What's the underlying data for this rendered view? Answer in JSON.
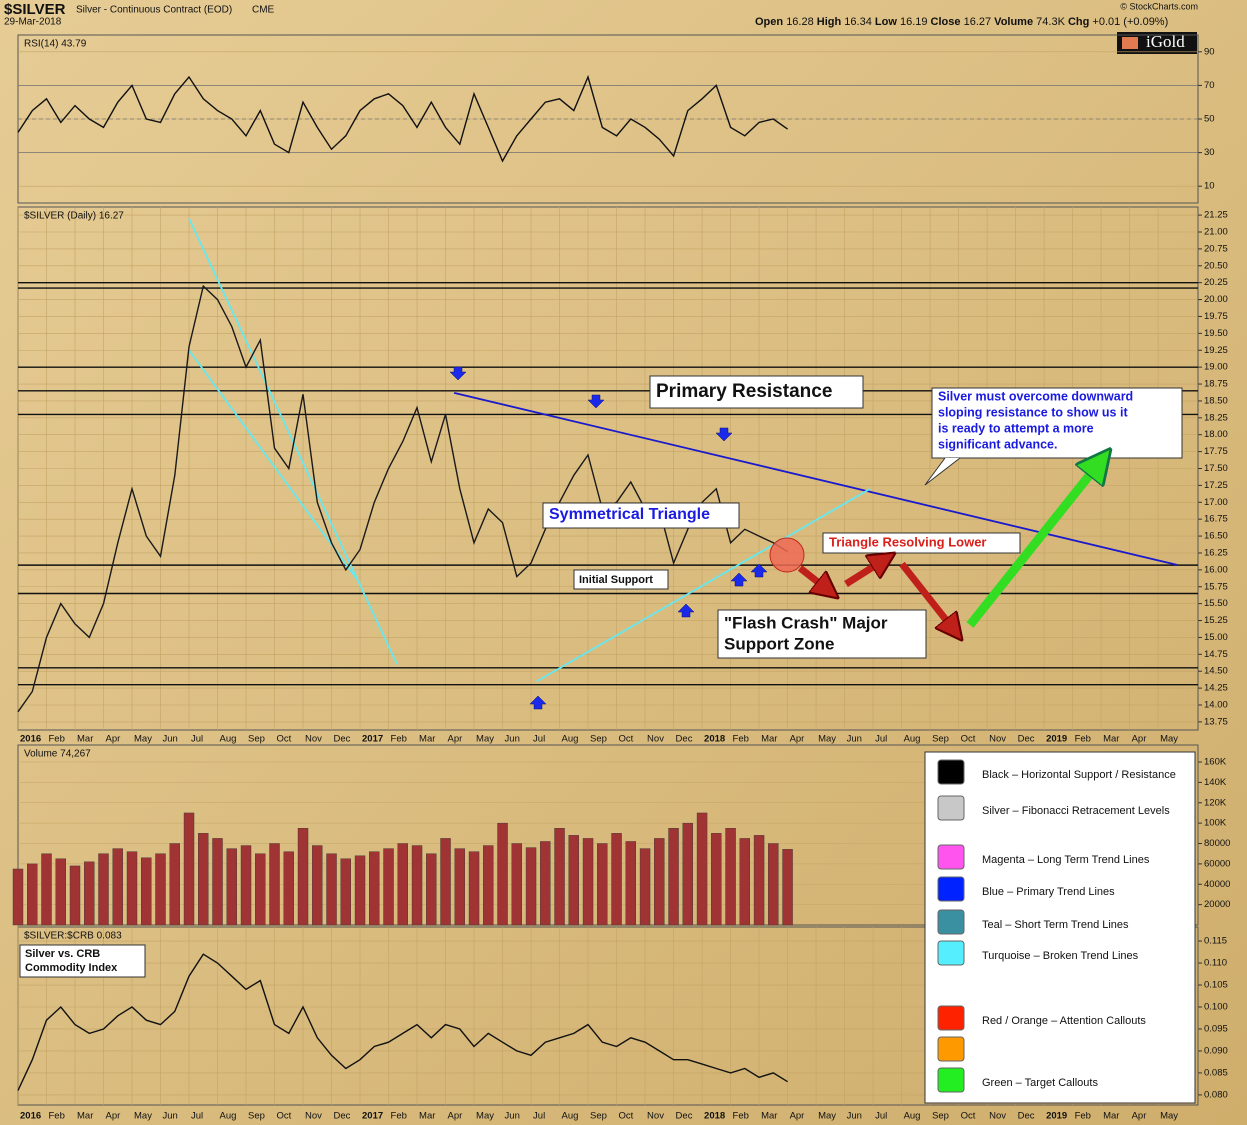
{
  "header": {
    "symbol": "$SILVER",
    "name": "Silver - Continuous Contract (EOD)",
    "exchange": "CME",
    "date": "29-Mar-2018",
    "quote": [
      "Open",
      "16.28",
      "High",
      "16.34",
      "Low",
      "16.19",
      "Close",
      "16.27",
      "Volume",
      "74.3K",
      "Chg",
      "+0.01 (+0.09%)"
    ],
    "source": "© StockCharts.com",
    "logo": "iGold"
  },
  "chart_data": [
    {
      "type": "line",
      "title": "RSI(14) 43.79",
      "color": "#111111",
      "xlim": [
        0,
        41.4
      ],
      "ylim": [
        0,
        100
      ],
      "yticks": [
        10,
        30,
        50,
        70,
        90
      ],
      "reference_lines": [
        70,
        50,
        30
      ],
      "x": [
        0,
        0.5,
        1,
        1.5,
        2,
        2.5,
        3,
        3.5,
        4,
        4.5,
        5,
        5.5,
        6,
        6.5,
        7,
        7.5,
        8,
        8.5,
        9,
        9.5,
        10,
        10.5,
        11,
        11.5,
        12,
        12.5,
        13,
        13.5,
        14,
        14.5,
        15,
        15.5,
        16,
        16.5,
        17,
        17.5,
        18,
        18.5,
        19,
        19.5,
        20,
        20.5,
        21,
        21.5,
        22,
        22.5,
        23,
        23.5,
        24,
        24.5,
        25,
        25.5,
        26,
        26.5,
        27
      ],
      "values": [
        42,
        55,
        62,
        48,
        58,
        50,
        45,
        60,
        70,
        50,
        48,
        65,
        75,
        62,
        55,
        50,
        40,
        55,
        35,
        30,
        60,
        45,
        32,
        40,
        55,
        62,
        65,
        58,
        45,
        60,
        45,
        35,
        65,
        45,
        25,
        40,
        50,
        60,
        62,
        55,
        75,
        45,
        40,
        50,
        45,
        38,
        28,
        55,
        62,
        70,
        45,
        40,
        48,
        50,
        44
      ]
    },
    {
      "type": "line",
      "title": "$SILVER (Daily) 16.27",
      "color": "#1a1a1a",
      "xlim": [
        0,
        41.4
      ],
      "ylim": [
        13.63,
        21.37
      ],
      "yticks": [
        13.75,
        {
          "value": 14,
          "label": "14.00"
        },
        14.25,
        {
          "value": 14.5,
          "label": "14.50"
        },
        14.75,
        {
          "value": 15,
          "label": "15.00"
        },
        15.25,
        {
          "value": 15.5,
          "label": "15.50"
        },
        15.75,
        {
          "value": 16,
          "label": "16.00"
        },
        16.25,
        {
          "value": 16.5,
          "label": "16.50"
        },
        16.75,
        {
          "value": 17,
          "label": "17.00"
        },
        17.25,
        {
          "value": 17.5,
          "label": "17.50"
        },
        17.75,
        {
          "value": 18,
          "label": "18.00"
        },
        18.25,
        {
          "value": 18.5,
          "label": "18.50"
        },
        18.75,
        {
          "value": 19,
          "label": "19.00"
        },
        19.25,
        {
          "value": 19.5,
          "label": "19.50"
        },
        19.75,
        {
          "value": 20,
          "label": "20.00"
        },
        20.25,
        {
          "value": 20.5,
          "label": "20.50"
        },
        20.75,
        {
          "value": 21,
          "label": "21.00"
        },
        21.25
      ],
      "xticks": [
        {
          "value": 0,
          "label": "2016"
        },
        {
          "value": 1,
          "label": "Feb"
        },
        {
          "value": 2,
          "label": "Mar"
        },
        {
          "value": 3,
          "label": "Apr"
        },
        {
          "value": 4,
          "label": "May"
        },
        {
          "value": 5,
          "label": "Jun"
        },
        {
          "value": 6,
          "label": "Jul"
        },
        {
          "value": 7,
          "label": "Aug"
        },
        {
          "value": 8,
          "label": "Sep"
        },
        {
          "value": 9,
          "label": "Oct"
        },
        {
          "value": 10,
          "label": "Nov"
        },
        {
          "value": 11,
          "label": "Dec"
        },
        {
          "value": 12,
          "label": "2017"
        },
        {
          "value": 13,
          "label": "Feb"
        },
        {
          "value": 14,
          "label": "Mar"
        },
        {
          "value": 15,
          "label": "Apr"
        },
        {
          "value": 16,
          "label": "May"
        },
        {
          "value": 17,
          "label": "Jun"
        },
        {
          "value": 18,
          "label": "Jul"
        },
        {
          "value": 19,
          "label": "Aug"
        },
        {
          "value": 20,
          "label": "Sep"
        },
        {
          "value": 21,
          "label": "Oct"
        },
        {
          "value": 22,
          "label": "Nov"
        },
        {
          "value": 23,
          "label": "Dec"
        },
        {
          "value": 24,
          "label": "2018"
        },
        {
          "value": 25,
          "label": "Feb"
        },
        {
          "value": 26,
          "label": "Mar"
        },
        {
          "value": 27,
          "label": "Apr"
        },
        {
          "value": 28,
          "label": "May"
        },
        {
          "value": 29,
          "label": "Jun"
        },
        {
          "value": 30,
          "label": "Jul"
        },
        {
          "value": 31,
          "label": "Aug"
        },
        {
          "value": 32,
          "label": "Sep"
        },
        {
          "value": 33,
          "label": "Oct"
        },
        {
          "value": 34,
          "label": "Nov"
        },
        {
          "value": 35,
          "label": "Dec"
        },
        {
          "value": 36,
          "label": "2019"
        },
        {
          "value": 37,
          "label": "Feb"
        },
        {
          "value": 38,
          "label": "Mar"
        },
        {
          "value": 39,
          "label": "Apr"
        },
        {
          "value": 40,
          "label": "May"
        }
      ],
      "reference_lines": [
        20.25,
        20.17,
        19.0,
        18.65,
        18.3,
        16.07,
        15.65,
        14.55,
        14.3
      ],
      "trend_lines": [
        {
          "color": "#1a1acc",
          "points": [
            [
              15.3,
              18.62
            ],
            [
              40.7,
              16.07
            ]
          ]
        },
        {
          "color": "#66e8f0",
          "points": [
            [
              6.0,
              21.2
            ],
            [
              13.3,
              14.6
            ]
          ]
        },
        {
          "color": "#66e8f0",
          "points": [
            [
              6.0,
              19.25
            ],
            [
              12.0,
              15.8
            ]
          ]
        },
        {
          "color": "#66e8f0",
          "points": [
            [
              18.2,
              14.35
            ],
            [
              29.9,
              17.2
            ]
          ]
        }
      ],
      "x": [
        0,
        0.5,
        1,
        1.5,
        2,
        2.5,
        3,
        3.5,
        4,
        4.5,
        5,
        5.5,
        6,
        6.5,
        7,
        7.5,
        8,
        8.5,
        9,
        9.5,
        10,
        10.5,
        11,
        11.5,
        12,
        12.5,
        13,
        13.5,
        14,
        14.5,
        15,
        15.5,
        16,
        16.5,
        17,
        17.5,
        18,
        18.5,
        19,
        19.5,
        20,
        20.5,
        21,
        21.5,
        22,
        22.5,
        23,
        23.5,
        24,
        24.5,
        25,
        25.5,
        26,
        26.5,
        27
      ],
      "values": [
        13.9,
        14.2,
        15.0,
        15.5,
        15.2,
        15.0,
        15.5,
        16.4,
        17.2,
        16.5,
        16.2,
        17.4,
        19.3,
        20.2,
        20.0,
        19.6,
        19.0,
        19.4,
        17.8,
        17.5,
        18.6,
        17.0,
        16.4,
        16.0,
        16.3,
        17.0,
        17.5,
        17.9,
        18.4,
        17.6,
        18.3,
        17.2,
        16.4,
        16.9,
        16.7,
        15.9,
        16.1,
        16.6,
        17.0,
        17.4,
        17.7,
        16.9,
        17.0,
        17.3,
        16.9,
        16.9,
        16.1,
        16.6,
        17.0,
        17.2,
        16.4,
        16.6,
        16.5,
        16.4,
        16.27
      ]
    },
    {
      "type": "bar",
      "title": "Volume 74,267",
      "color": "#a03434",
      "xlim": [
        0,
        41.4
      ],
      "ylim": [
        0,
        176700
      ],
      "yticks": [
        20000,
        40000,
        60000,
        80000,
        {
          "value": 100000,
          "label": "100K"
        },
        {
          "value": 120000,
          "label": "120K"
        },
        {
          "value": 140000,
          "label": "140K"
        },
        {
          "value": 160000,
          "label": "160K"
        }
      ],
      "x": [
        0,
        0.5,
        1,
        1.5,
        2,
        2.5,
        3,
        3.5,
        4,
        4.5,
        5,
        5.5,
        6,
        6.5,
        7,
        7.5,
        8,
        8.5,
        9,
        9.5,
        10,
        10.5,
        11,
        11.5,
        12,
        12.5,
        13,
        13.5,
        14,
        14.5,
        15,
        15.5,
        16,
        16.5,
        17,
        17.5,
        18,
        18.5,
        19,
        19.5,
        20,
        20.5,
        21,
        21.5,
        22,
        22.5,
        23,
        23.5,
        24,
        24.5,
        25,
        25.5,
        26,
        26.5,
        27
      ],
      "values": [
        55000,
        60000,
        70000,
        65000,
        58000,
        62000,
        70000,
        75000,
        72000,
        66000,
        70000,
        80000,
        110000,
        90000,
        85000,
        75000,
        78000,
        70000,
        80000,
        72000,
        95000,
        78000,
        70000,
        65000,
        68000,
        72000,
        75000,
        80000,
        78000,
        70000,
        85000,
        75000,
        72000,
        78000,
        100000,
        80000,
        76000,
        82000,
        95000,
        88000,
        85000,
        80000,
        90000,
        82000,
        75000,
        85000,
        95000,
        100000,
        110000,
        90000,
        95000,
        85000,
        88000,
        80000,
        74267
      ]
    },
    {
      "type": "line",
      "title": "$SILVER:$CRB 0.083",
      "color": "#111111",
      "xlim": [
        0,
        41.4
      ],
      "ylim": [
        0.0777,
        0.1182
      ],
      "yticks": [
        {
          "value": 0.08,
          "label": "0.080"
        },
        0.085,
        {
          "value": 0.09,
          "label": "0.090"
        },
        0.095,
        {
          "value": 0.1,
          "label": "0.100"
        },
        0.105,
        {
          "value": 0.11,
          "label": "0.110"
        },
        0.115
      ],
      "xticks": [
        {
          "value": 0,
          "label": "2016"
        },
        {
          "value": 1,
          "label": "Feb"
        },
        {
          "value": 2,
          "label": "Mar"
        },
        {
          "value": 3,
          "label": "Apr"
        },
        {
          "value": 4,
          "label": "May"
        },
        {
          "value": 5,
          "label": "Jun"
        },
        {
          "value": 6,
          "label": "Jul"
        },
        {
          "value": 7,
          "label": "Aug"
        },
        {
          "value": 8,
          "label": "Sep"
        },
        {
          "value": 9,
          "label": "Oct"
        },
        {
          "value": 10,
          "label": "Nov"
        },
        {
          "value": 11,
          "label": "Dec"
        },
        {
          "value": 12,
          "label": "2017"
        },
        {
          "value": 13,
          "label": "Feb"
        },
        {
          "value": 14,
          "label": "Mar"
        },
        {
          "value": 15,
          "label": "Apr"
        },
        {
          "value": 16,
          "label": "May"
        },
        {
          "value": 17,
          "label": "Jun"
        },
        {
          "value": 18,
          "label": "Jul"
        },
        {
          "value": 19,
          "label": "Aug"
        },
        {
          "value": 20,
          "label": "Sep"
        },
        {
          "value": 21,
          "label": "Oct"
        },
        {
          "value": 22,
          "label": "Nov"
        },
        {
          "value": 23,
          "label": "Dec"
        },
        {
          "value": 24,
          "label": "2018"
        },
        {
          "value": 25,
          "label": "Feb"
        },
        {
          "value": 26,
          "label": "Mar"
        },
        {
          "value": 27,
          "label": "Apr"
        },
        {
          "value": 28,
          "label": "May"
        },
        {
          "value": 29,
          "label": "Jun"
        },
        {
          "value": 30,
          "label": "Jul"
        },
        {
          "value": 31,
          "label": "Aug"
        },
        {
          "value": 32,
          "label": "Sep"
        },
        {
          "value": 33,
          "label": "Oct"
        },
        {
          "value": 34,
          "label": "Nov"
        },
        {
          "value": 35,
          "label": "Dec"
        },
        {
          "value": 36,
          "label": "2019"
        },
        {
          "value": 37,
          "label": "Feb"
        },
        {
          "value": 38,
          "label": "Mar"
        },
        {
          "value": 39,
          "label": "Apr"
        },
        {
          "value": 40,
          "label": "May"
        }
      ],
      "x": [
        0,
        0.5,
        1,
        1.5,
        2,
        2.5,
        3,
        3.5,
        4,
        4.5,
        5,
        5.5,
        6,
        6.5,
        7,
        7.5,
        8,
        8.5,
        9,
        9.5,
        10,
        10.5,
        11,
        11.5,
        12,
        12.5,
        13,
        13.5,
        14,
        14.5,
        15,
        15.5,
        16,
        16.5,
        17,
        17.5,
        18,
        18.5,
        19,
        19.5,
        20,
        20.5,
        21,
        21.5,
        22,
        22.5,
        23,
        23.5,
        24,
        24.5,
        25,
        25.5,
        26,
        26.5,
        27
      ],
      "values": [
        0.081,
        0.088,
        0.097,
        0.1,
        0.096,
        0.094,
        0.095,
        0.098,
        0.1,
        0.097,
        0.096,
        0.099,
        0.107,
        0.112,
        0.11,
        0.107,
        0.104,
        0.106,
        0.096,
        0.094,
        0.1,
        0.093,
        0.089,
        0.086,
        0.088,
        0.091,
        0.092,
        0.094,
        0.096,
        0.093,
        0.096,
        0.095,
        0.091,
        0.094,
        0.092,
        0.09,
        0.089,
        0.092,
        0.093,
        0.094,
        0.096,
        0.092,
        0.091,
        0.093,
        0.092,
        0.09,
        0.088,
        0.088,
        0.087,
        0.086,
        0.085,
        0.086,
        0.084,
        0.085,
        0.083
      ]
    }
  ],
  "annotations": {
    "primary_resistance": "Primary Resistance",
    "callout": [
      "Silver must overcome downward",
      "sloping resistance to show us it",
      "is ready to attempt a more",
      "significant advance."
    ],
    "triangle": "Symmetrical Triangle",
    "resolving": "Triangle Resolving Lower",
    "initial_support": "Initial Support",
    "flash_crash": [
      "\"Flash Crash\" Major",
      "Support Zone"
    ],
    "ratio_label": [
      "Silver vs. CRB",
      "Commodity Index"
    ]
  },
  "legend_box": {
    "items": [
      {
        "label": "Black – Horizontal Support / Resistance",
        "color": "#000000"
      },
      {
        "label": "Silver – Fibonacci Retracement Levels",
        "color": "#c8c8c8"
      },
      {
        "label": "Magenta – Long Term Trend Lines",
        "color": "#ff55ee"
      },
      {
        "label": "Blue – Primary Trend Lines",
        "color": "#0022ff"
      },
      {
        "label": "Teal – Short Term Trend Lines",
        "color": "#3a8fa0"
      },
      {
        "label": "Turquoise – Broken Trend Lines",
        "color": "#55eeff"
      },
      {
        "label": "Red / Orange – Attention Callouts",
        "color": "#ff2200"
      },
      {
        "label": "",
        "color": "#ff9900"
      },
      {
        "label": "Green – Target Callouts",
        "color": "#22ee22"
      }
    ]
  }
}
